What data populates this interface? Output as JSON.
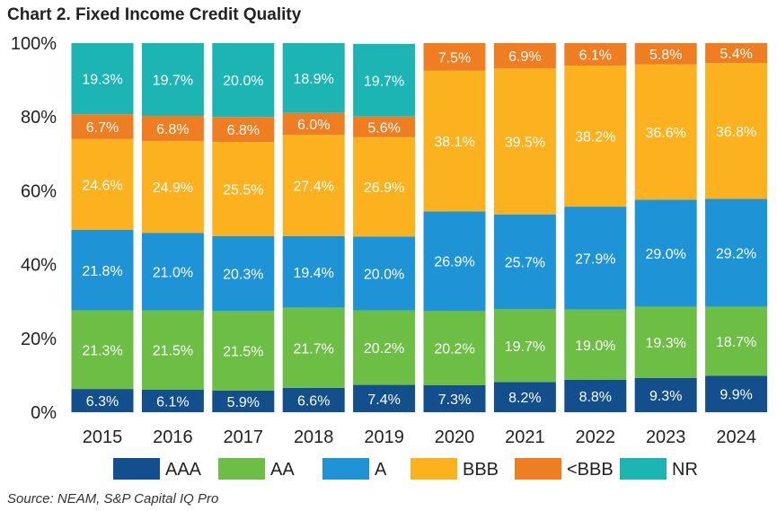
{
  "chart_data": {
    "type": "bar",
    "stacked": true,
    "title": "Chart 2. Fixed Income Credit Quality",
    "source": "Source: NEAM, S&P Capital IQ Pro",
    "categories": [
      "2015",
      "2016",
      "2017",
      "2018",
      "2019",
      "2020",
      "2021",
      "2022",
      "2023",
      "2024"
    ],
    "ylim": [
      0,
      100
    ],
    "y_ticks": [
      "0%",
      "20%",
      "40%",
      "60%",
      "80%",
      "100%"
    ],
    "y_tick_values": [
      0,
      20,
      40,
      60,
      80,
      100
    ],
    "grid": false,
    "legend_position": "bottom",
    "series": [
      {
        "name": "AAA",
        "color": "#124f8c",
        "values": [
          6.3,
          6.1,
          5.9,
          6.6,
          7.4,
          7.3,
          8.2,
          8.8,
          9.3,
          9.9
        ],
        "labels": [
          "6.3%",
          "6.1%",
          "5.9%",
          "6.6%",
          "7.4%",
          "7.3%",
          "8.2%",
          "8.8%",
          "9.3%",
          "9.9%"
        ]
      },
      {
        "name": "AA",
        "color": "#6cbe45",
        "values": [
          21.3,
          21.5,
          21.5,
          21.7,
          20.2,
          20.2,
          19.7,
          19.0,
          19.3,
          18.7
        ],
        "labels": [
          "21.3%",
          "21.5%",
          "21.5%",
          "21.7%",
          "20.2%",
          "20.2%",
          "19.7%",
          "19.0%",
          "19.3%",
          "18.7%"
        ]
      },
      {
        "name": "A",
        "color": "#1e94d6",
        "values": [
          21.8,
          21.0,
          20.3,
          19.4,
          20.0,
          26.9,
          25.7,
          27.9,
          29.0,
          29.2
        ],
        "labels": [
          "21.8%",
          "21.0%",
          "20.3%",
          "19.4%",
          "20.0%",
          "26.9%",
          "25.7%",
          "27.9%",
          "29.0%",
          "29.2%"
        ]
      },
      {
        "name": "BBB",
        "color": "#fbb21e",
        "values": [
          24.6,
          24.9,
          25.5,
          27.4,
          26.9,
          38.1,
          39.5,
          38.2,
          36.6,
          36.8
        ],
        "labels": [
          "24.6%",
          "24.9%",
          "25.5%",
          "27.4%",
          "26.9%",
          "38.1%",
          "39.5%",
          "38.2%",
          "36.6%",
          "36.8%"
        ]
      },
      {
        "name": "<BBB",
        "color": "#ef7d22",
        "values": [
          6.7,
          6.8,
          6.8,
          6.0,
          5.6,
          7.5,
          6.9,
          6.1,
          5.8,
          5.4
        ],
        "labels": [
          "6.7%",
          "6.8%",
          "6.8%",
          "6.0%",
          "5.6%",
          "7.5%",
          "6.9%",
          "6.1%",
          "5.8%",
          "5.4%"
        ]
      },
      {
        "name": "NR",
        "color": "#1cb5b3",
        "values": [
          19.3,
          19.7,
          20.0,
          18.9,
          19.7,
          0,
          0,
          0,
          0,
          0
        ],
        "labels": [
          "19.3%",
          "19.7%",
          "20.0%",
          "18.9%",
          "19.7%",
          "",
          "",
          "",
          "",
          ""
        ]
      }
    ]
  }
}
